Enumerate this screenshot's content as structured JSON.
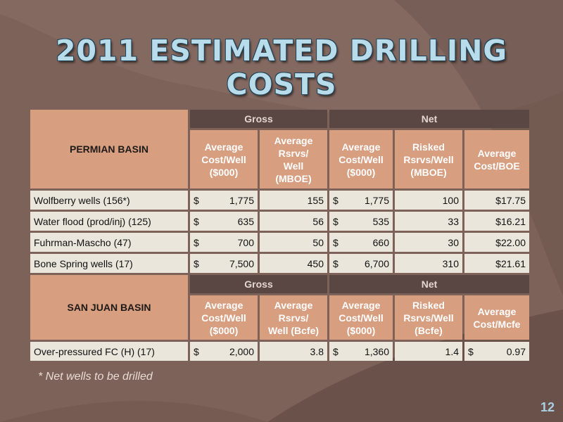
{
  "slide": {
    "title": "2011 Estimated Drilling Costs",
    "footnote": "* Net wells to be drilled",
    "page_number": "12"
  },
  "permian": {
    "basin_label": "PERMIAN BASIN",
    "gross_label": "Gross",
    "net_label": "Net",
    "col_headers": [
      [
        "Average",
        "Cost/Well",
        "($000)"
      ],
      [
        "Average",
        "Rsrvs/",
        "Well",
        "(MBOE)"
      ],
      [
        "Average",
        "Cost/Well",
        "($000)"
      ],
      [
        "Risked",
        "Rsrvs/Well",
        "(MBOE)"
      ],
      [
        "Average",
        "Cost/BOE"
      ]
    ],
    "rows": [
      {
        "label": "Wolfberry wells (156*)",
        "gross_cost": "1,775",
        "gross_rsrvs": "155",
        "net_cost": "1,775",
        "net_rsrvs": "100",
        "cost_per": "$17.75"
      },
      {
        "label": "Water flood (prod/inj) (125)",
        "gross_cost": "635",
        "gross_rsrvs": "56",
        "net_cost": "535",
        "net_rsrvs": "33",
        "cost_per": "$16.21"
      },
      {
        "label": "Fuhrman-Mascho (47)",
        "gross_cost": "700",
        "gross_rsrvs": "50",
        "net_cost": "660",
        "net_rsrvs": "30",
        "cost_per": "$22.00"
      },
      {
        "label": "Bone Spring wells (17)",
        "gross_cost": "7,500",
        "gross_rsrvs": "450",
        "net_cost": "6,700",
        "net_rsrvs": "310",
        "cost_per": "$21.61"
      }
    ]
  },
  "sanjuan": {
    "basin_label": "SAN JUAN BASIN",
    "gross_label": "Gross",
    "net_label": "Net",
    "col_headers": [
      [
        "Average",
        "Cost/Well",
        "($000)"
      ],
      [
        "Average",
        "Rsrvs/",
        "Well (Bcfe)"
      ],
      [
        "Average",
        "Cost/Well",
        "($000)"
      ],
      [
        "Risked",
        "Rsrvs/Well",
        "(Bcfe)"
      ],
      [
        "Average",
        "Cost/Mcfe"
      ]
    ],
    "rows": [
      {
        "label": "Over-pressured FC (H) (17)",
        "gross_cost": "2,000",
        "gross_rsrvs": "3.8",
        "net_cost": "1,360",
        "net_rsrvs": "1.4",
        "cost_per": "0.97"
      }
    ]
  },
  "currency_symbol": "$",
  "colors": {
    "background": "#7d6259",
    "header_dark": "#5a4744",
    "header_peach": "#d79e80",
    "cell": "#ebe6dc",
    "title": "#b9dcea"
  }
}
